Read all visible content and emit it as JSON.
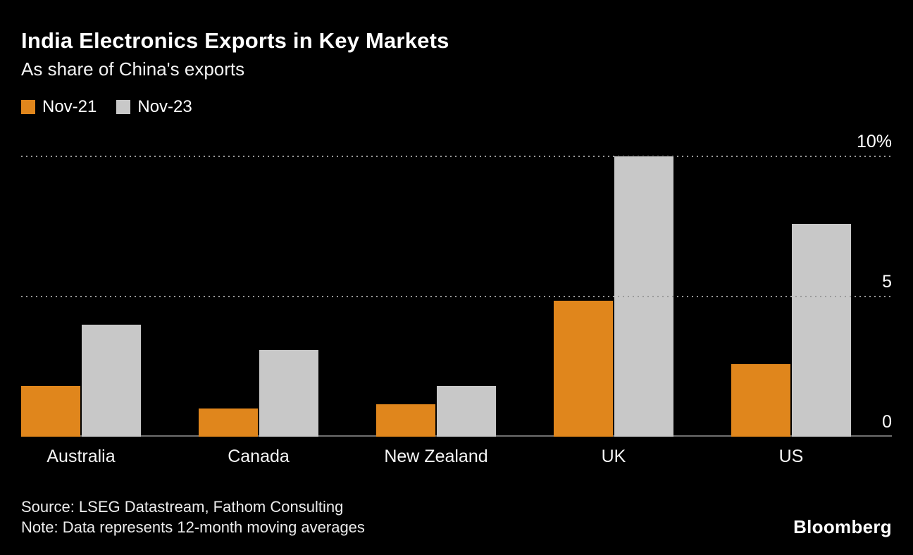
{
  "chart_data": {
    "type": "bar",
    "title": "India Electronics Exports in Key Markets",
    "subtitle": "As share of China's exports",
    "categories": [
      "Australia",
      "Canada",
      "New Zealand",
      "UK",
      "US"
    ],
    "series": [
      {
        "name": "Nov-21",
        "color": "#E0861C",
        "values": [
          1.8,
          1.0,
          1.15,
          4.85,
          2.6
        ]
      },
      {
        "name": "Nov-23",
        "color": "#C8C8C8",
        "values": [
          4.0,
          3.1,
          1.8,
          10.0,
          7.6
        ]
      }
    ],
    "ylim": [
      0,
      10
    ],
    "yticks": [
      {
        "value": 0,
        "label": "0"
      },
      {
        "value": 5,
        "label": "5"
      },
      {
        "value": 10,
        "label": "10%"
      }
    ],
    "gridlines_at": [
      5,
      10
    ],
    "grid_style": "dotted",
    "legend_position": "top-left"
  },
  "footer": {
    "source": "Source: LSEG Datastream, Fathom Consulting",
    "note": "Note: Data represents 12-month moving averages",
    "brand": "Bloomberg"
  },
  "colors": {
    "background": "#000000",
    "text": "#FFFFFF",
    "grid": "#9A9A9A",
    "axis": "#6F6F6F",
    "nov21": "#E0861C",
    "nov23": "#C8C8C8"
  }
}
